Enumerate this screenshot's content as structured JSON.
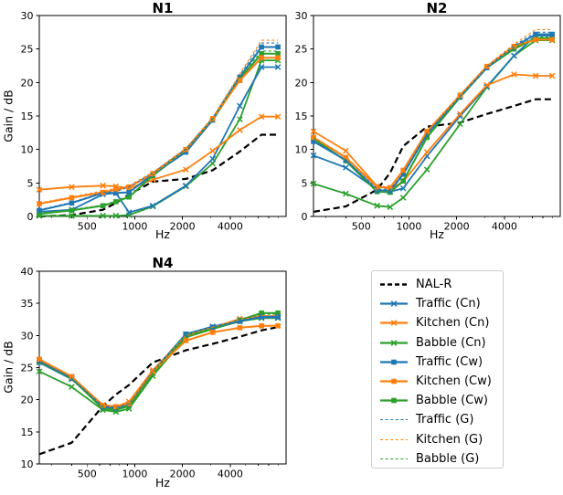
{
  "colors": {
    "blue": "#1f77b4",
    "orange": "#ff7f0e",
    "green": "#2ca02c",
    "black": "#000000",
    "legend_border": "#cccccc",
    "axis": "#000000"
  },
  "series_styles": {
    "NAL-R": {
      "color": "black",
      "marker": "none",
      "dash": "dashed",
      "width": 2.2
    },
    "Traffic (Cn)": {
      "color": "blue",
      "marker": "x",
      "dash": "solid",
      "width": 1.8
    },
    "Kitchen (Cn)": {
      "color": "orange",
      "marker": "x",
      "dash": "solid",
      "width": 1.8
    },
    "Babble (Cn)": {
      "color": "green",
      "marker": "x",
      "dash": "solid",
      "width": 1.8
    },
    "Traffic (Cw)": {
      "color": "blue",
      "marker": "square",
      "dash": "solid",
      "width": 2.0
    },
    "Kitchen (Cw)": {
      "color": "orange",
      "marker": "square",
      "dash": "solid",
      "width": 2.0
    },
    "Babble (Cw)": {
      "color": "green",
      "marker": "square",
      "dash": "solid",
      "width": 2.0
    },
    "Traffic (G)": {
      "color": "blue",
      "marker": "none",
      "dash": "dashed-fine",
      "width": 1.1
    },
    "Kitchen (G)": {
      "color": "orange",
      "marker": "none",
      "dash": "dashed-fine",
      "width": 1.1
    },
    "Babble (G)": {
      "color": "green",
      "marker": "none",
      "dash": "dashed-fine",
      "width": 1.1
    }
  },
  "legend": {
    "entries": [
      {
        "label": "NAL-R"
      },
      {
        "label": "Traffic (Cn)"
      },
      {
        "label": "Kitchen (Cn)"
      },
      {
        "label": "Babble (Cn)"
      },
      {
        "label": "Traffic (Cw)"
      },
      {
        "label": "Kitchen (Cw)"
      },
      {
        "label": "Babble (Cw)"
      },
      {
        "label": "Traffic (G)"
      },
      {
        "label": "Kitchen (G)"
      },
      {
        "label": "Babble (G)"
      }
    ]
  },
  "chart_data": [
    {
      "type": "line",
      "title": "N1",
      "xlabel": "Hz",
      "ylabel": "Gain / dB",
      "xscale": "log",
      "xlim": [
        250,
        9000
      ],
      "ylim": [
        0,
        30
      ],
      "xticks": [
        500,
        1000,
        2000,
        4000
      ],
      "xticks_minor": [
        300,
        400,
        600,
        700,
        800,
        900,
        3000,
        5000,
        6000,
        7000,
        8000
      ],
      "yticks": [
        0,
        5,
        10,
        15,
        20,
        25,
        30
      ],
      "x": [
        250,
        400,
        630,
        760,
        920,
        1300,
        2100,
        3100,
        4600,
        6300,
        8000
      ],
      "series": [
        {
          "name": "NAL-R",
          "values": [
            0.0,
            0.2,
            1.0,
            2.0,
            3.3,
            5.2,
            5.6,
            6.9,
            9.7,
            12.2,
            12.2
          ]
        },
        {
          "name": "Traffic (Cn)",
          "values": [
            0.7,
            1.0,
            3.3,
            3.5,
            0.6,
            1.6,
            4.6,
            8.6,
            16.5,
            22.3,
            22.3
          ]
        },
        {
          "name": "Kitchen (Cn)",
          "values": [
            4.0,
            4.4,
            4.6,
            4.5,
            4.2,
            5.5,
            7.0,
            9.8,
            12.9,
            14.9,
            14.9
          ]
        },
        {
          "name": "Babble (Cn)",
          "values": [
            0.1,
            0.1,
            0.1,
            0.1,
            0.2,
            1.5,
            4.5,
            7.9,
            14.5,
            23.3,
            23.3
          ]
        },
        {
          "name": "Traffic (Cw)",
          "values": [
            0.9,
            2.0,
            3.5,
            3.5,
            3.6,
            6.3,
            9.6,
            14.4,
            20.8,
            25.3,
            25.3
          ]
        },
        {
          "name": "Kitchen (Cw)",
          "values": [
            1.9,
            2.8,
            3.6,
            4.0,
            4.4,
            6.4,
            10.0,
            14.6,
            20.3,
            23.7,
            23.7
          ]
        },
        {
          "name": "Babble (Cw)",
          "values": [
            0.4,
            0.9,
            1.6,
            2.2,
            2.9,
            6.1,
            9.9,
            14.4,
            20.5,
            24.3,
            24.3
          ]
        },
        {
          "name": "Traffic (G)",
          "values": [
            1.0,
            2.1,
            3.6,
            3.7,
            4.4,
            6.5,
            10.1,
            14.7,
            21.1,
            25.9,
            25.9
          ]
        },
        {
          "name": "Kitchen (G)",
          "values": [
            2.0,
            2.9,
            3.8,
            4.2,
            4.6,
            6.6,
            10.2,
            14.8,
            21.3,
            26.3,
            26.3
          ]
        },
        {
          "name": "Babble (G)",
          "values": [
            0.5,
            1.0,
            1.7,
            2.3,
            3.0,
            6.2,
            10.0,
            14.5,
            20.8,
            24.7,
            24.7
          ]
        }
      ]
    },
    {
      "type": "line",
      "title": "N2",
      "xlabel": "Hz",
      "ylabel": "",
      "xscale": "log",
      "xlim": [
        250,
        9000
      ],
      "ylim": [
        0,
        30
      ],
      "xticks": [
        500,
        1000,
        2000,
        4000
      ],
      "xticks_minor": [
        300,
        400,
        600,
        700,
        800,
        900,
        3000,
        5000,
        6000,
        7000,
        8000
      ],
      "yticks": [
        0,
        5,
        10,
        15,
        20,
        25,
        30
      ],
      "x": [
        250,
        400,
        630,
        760,
        920,
        1300,
        2100,
        3100,
        4600,
        6300,
        8000
      ],
      "series": [
        {
          "name": "NAL-R",
          "values": [
            0.7,
            1.5,
            4.0,
            6.5,
            10.5,
            13.4,
            14.0,
            15.3,
            16.5,
            17.5,
            17.5
          ]
        },
        {
          "name": "Traffic (Cn)",
          "values": [
            9.1,
            7.3,
            4.0,
            3.7,
            4.2,
            9.0,
            15.0,
            19.4,
            24.0,
            27.0,
            27.0
          ]
        },
        {
          "name": "Kitchen (Cn)",
          "values": [
            12.7,
            9.8,
            4.5,
            4.1,
            5.2,
            9.6,
            15.3,
            19.6,
            21.2,
            21.0,
            21.0
          ]
        },
        {
          "name": "Babble (Cn)",
          "values": [
            4.9,
            3.4,
            1.6,
            1.4,
            2.8,
            7.0,
            13.8,
            19.3,
            24.0,
            26.3,
            26.3
          ]
        },
        {
          "name": "Traffic (Cw)",
          "values": [
            11.2,
            8.4,
            3.9,
            3.8,
            6.3,
            12.3,
            17.9,
            22.2,
            25.3,
            27.2,
            27.2
          ]
        },
        {
          "name": "Kitchen (Cw)",
          "values": [
            11.8,
            8.8,
            4.4,
            4.3,
            6.9,
            12.7,
            18.1,
            22.4,
            25.4,
            26.4,
            26.4
          ]
        },
        {
          "name": "Babble (Cw)",
          "values": [
            11.6,
            8.3,
            3.7,
            3.6,
            5.3,
            11.8,
            17.8,
            22.2,
            25.0,
            26.6,
            26.6
          ]
        },
        {
          "name": "Traffic (G)",
          "values": [
            11.3,
            8.5,
            4.1,
            4.0,
            6.5,
            12.4,
            18.0,
            22.3,
            25.5,
            27.5,
            27.5
          ]
        },
        {
          "name": "Kitchen (G)",
          "values": [
            11.9,
            8.9,
            4.5,
            4.4,
            7.0,
            12.8,
            18.2,
            22.5,
            25.7,
            27.9,
            27.9
          ]
        },
        {
          "name": "Babble (G)",
          "values": [
            11.7,
            8.4,
            3.8,
            3.7,
            5.4,
            11.9,
            17.9,
            22.3,
            25.2,
            26.8,
            26.8
          ]
        }
      ]
    },
    {
      "type": "line",
      "title": "N4",
      "xlabel": "Hz",
      "ylabel": "Gain / dB",
      "xscale": "log",
      "xlim": [
        250,
        9000
      ],
      "ylim": [
        10,
        40
      ],
      "xticks": [
        500,
        1000,
        2000,
        4000
      ],
      "xticks_minor": [
        300,
        400,
        600,
        700,
        800,
        900,
        3000,
        5000,
        6000,
        7000,
        8000
      ],
      "yticks": [
        10,
        15,
        20,
        25,
        30,
        35,
        40
      ],
      "x": [
        250,
        400,
        630,
        760,
        920,
        1300,
        2100,
        3100,
        4600,
        6300,
        8000
      ],
      "series": [
        {
          "name": "NAL-R",
          "values": [
            11.5,
            13.3,
            19.0,
            20.8,
            22.3,
            25.8,
            27.7,
            28.7,
            29.8,
            30.8,
            31.3
          ]
        },
        {
          "name": "Traffic (Cn)",
          "values": [
            25.8,
            23.2,
            18.9,
            18.6,
            19.3,
            24.3,
            30.2,
            31.4,
            32.4,
            32.8,
            32.8
          ]
        },
        {
          "name": "Kitchen (Cn)",
          "values": [
            26.1,
            23.5,
            19.2,
            18.9,
            19.7,
            24.6,
            29.9,
            31.2,
            32.6,
            33.0,
            33.0
          ]
        },
        {
          "name": "Babble (Cn)",
          "values": [
            24.4,
            22.0,
            18.4,
            18.1,
            18.6,
            23.7,
            29.7,
            31.0,
            32.2,
            32.7,
            32.7
          ]
        },
        {
          "name": "Traffic (Cw)",
          "values": [
            26.0,
            23.4,
            18.9,
            18.7,
            19.3,
            24.4,
            30.2,
            31.3,
            32.2,
            32.9,
            32.9
          ]
        },
        {
          "name": "Kitchen (Cw)",
          "values": [
            26.3,
            23.6,
            19.1,
            18.9,
            19.4,
            24.4,
            29.2,
            30.5,
            31.2,
            31.5,
            31.5
          ]
        },
        {
          "name": "Babble (Cw)",
          "values": [
            25.9,
            23.3,
            18.6,
            18.4,
            19.0,
            24.1,
            30.0,
            31.1,
            32.4,
            33.5,
            33.5
          ]
        },
        {
          "name": "Traffic (G)",
          "values": [
            26.0,
            23.4,
            19.0,
            18.8,
            19.4,
            24.5,
            30.3,
            31.4,
            32.3,
            33.0,
            33.0
          ]
        },
        {
          "name": "Kitchen (G)",
          "values": [
            26.2,
            23.6,
            19.2,
            19.0,
            19.6,
            24.6,
            30.0,
            31.3,
            32.5,
            33.1,
            33.1
          ]
        },
        {
          "name": "Babble (G)",
          "values": [
            25.9,
            23.3,
            18.7,
            18.5,
            19.1,
            24.2,
            30.1,
            31.2,
            32.5,
            33.3,
            33.3
          ]
        }
      ]
    }
  ]
}
